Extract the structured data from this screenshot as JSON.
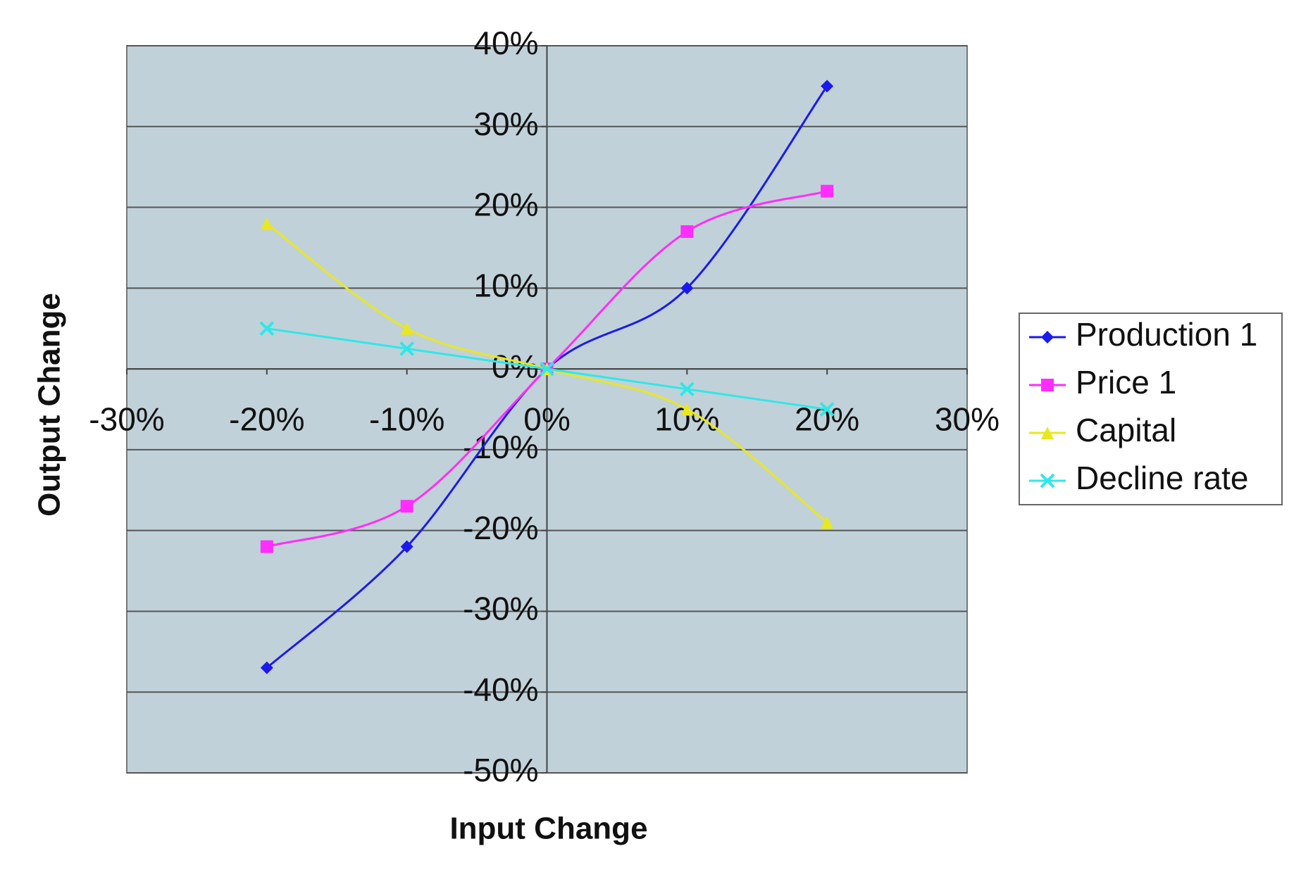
{
  "chart_data": {
    "type": "line",
    "xlabel": "Input Change",
    "ylabel": "Output Change",
    "x": [
      -20,
      -10,
      0,
      10,
      20
    ],
    "series": [
      {
        "name": "Production 1",
        "color": "#1a1aee",
        "marker": "diamond",
        "values": [
          -37,
          -22,
          0,
          10,
          35
        ]
      },
      {
        "name": "Price 1",
        "color": "#ff2dff",
        "marker": "square",
        "values": [
          -22,
          -17,
          0,
          17,
          22
        ]
      },
      {
        "name": "Capital",
        "color": "#e8e820",
        "marker": "triangle",
        "values": [
          18,
          5,
          0,
          -5,
          -19
        ]
      },
      {
        "name": "Decline rate",
        "color": "#2ee8e8",
        "marker": "x",
        "values": [
          5,
          2.5,
          0,
          -2.5,
          -5
        ]
      }
    ],
    "xlim": [
      -30,
      30
    ],
    "xticks": [
      {
        "value": -30,
        "label": "-30%"
      },
      {
        "value": -20,
        "label": "-20%"
      },
      {
        "value": -10,
        "label": "-10%"
      },
      {
        "value": 0,
        "label": "0%"
      },
      {
        "value": 10,
        "label": "10%"
      },
      {
        "value": 20,
        "label": "20%"
      },
      {
        "value": 30,
        "label": "30%"
      }
    ],
    "ylim": [
      -50,
      40
    ],
    "yticks": [
      {
        "value": -50,
        "label": "-50%"
      },
      {
        "value": -40,
        "label": "-40%"
      },
      {
        "value": -30,
        "label": "-30%"
      },
      {
        "value": -20,
        "label": "-20%"
      },
      {
        "value": -10,
        "label": "-10%"
      },
      {
        "value": 0,
        "label": "0%"
      },
      {
        "value": 10,
        "label": "10%"
      },
      {
        "value": 20,
        "label": "20%"
      },
      {
        "value": 30,
        "label": "30%"
      },
      {
        "value": 40,
        "label": "40%"
      }
    ],
    "grid": true,
    "smooth": true,
    "legend": "right"
  }
}
